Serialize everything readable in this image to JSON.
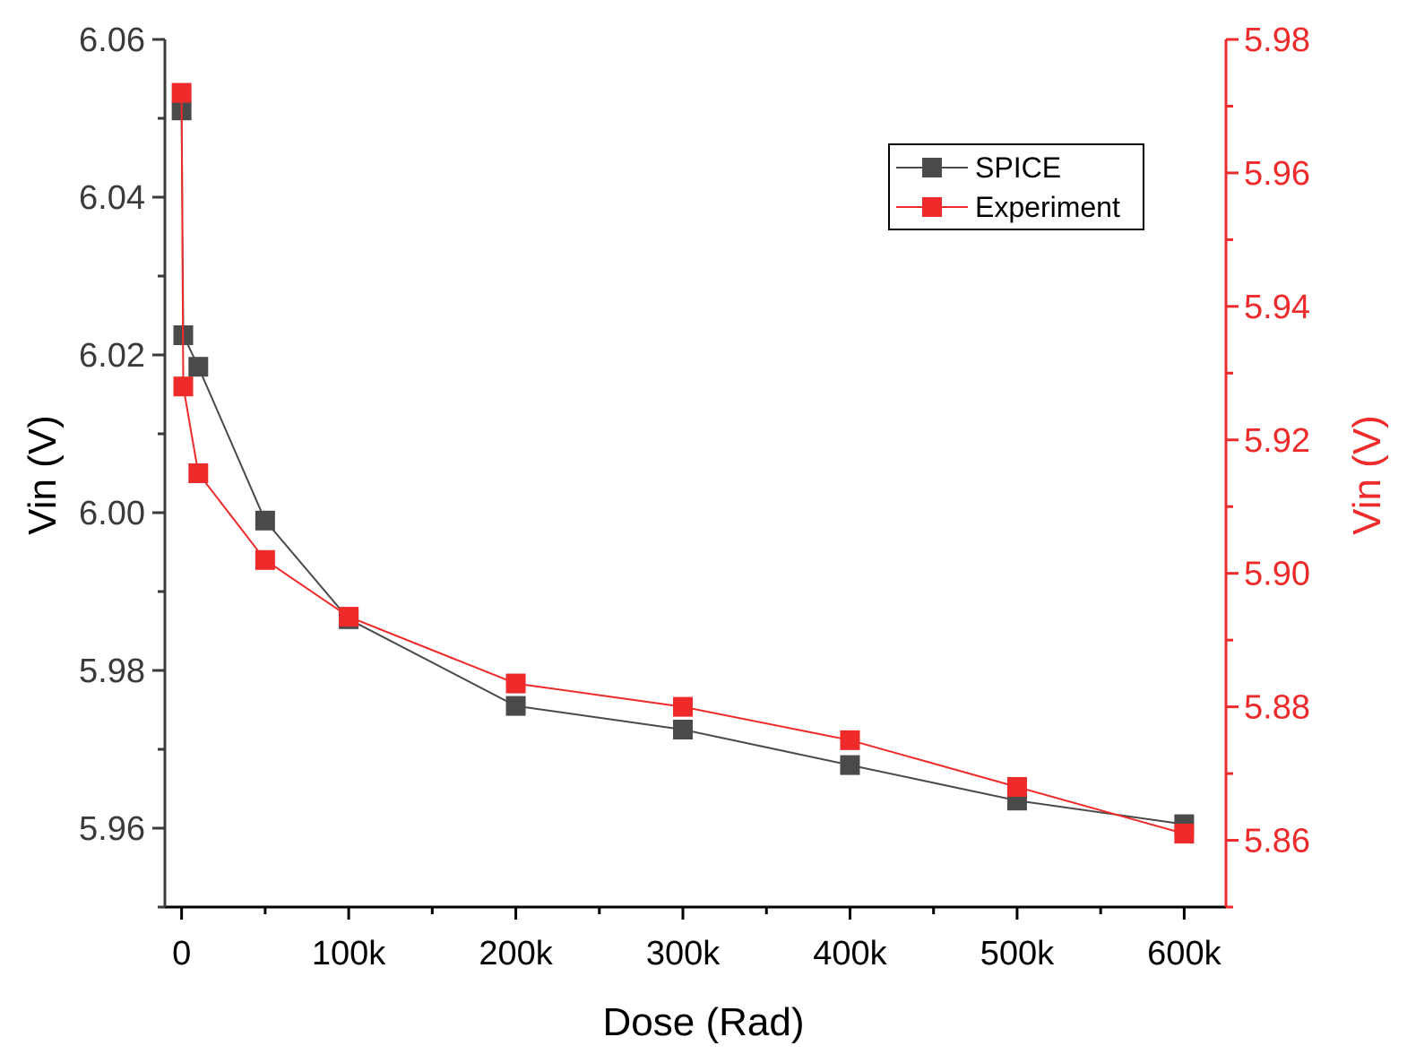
{
  "chart_data": {
    "type": "line",
    "x_ticks": [
      "0",
      "100k",
      "200k",
      "300k",
      "400k",
      "500k",
      "600k"
    ],
    "x_tick_values": [
      0,
      100000,
      200000,
      300000,
      400000,
      500000,
      600000
    ],
    "xlabel": "Dose (Rad)",
    "xlim": [
      -10000,
      625000
    ],
    "y_left": {
      "label": "Vin (V)",
      "lim": [
        5.95,
        6.06
      ],
      "ticks": [
        "5.96",
        "5.98",
        "6.00",
        "6.02",
        "6.04",
        "6.06"
      ],
      "tick_values": [
        5.96,
        5.98,
        6.0,
        6.02,
        6.04,
        6.06
      ],
      "color": "#3a3a3a"
    },
    "y_right": {
      "label": "Vin (V)",
      "lim": [
        5.85,
        5.98
      ],
      "ticks": [
        "5.86",
        "5.88",
        "5.90",
        "5.92",
        "5.94",
        "5.96",
        "5.98"
      ],
      "tick_values": [
        5.86,
        5.88,
        5.9,
        5.92,
        5.94,
        5.96,
        5.98
      ],
      "color": "#ee2a2a"
    },
    "series": [
      {
        "name": "SPICE",
        "axis": "left",
        "color": "#4a4a4a",
        "x": [
          0,
          1000,
          10000,
          50000,
          100000,
          200000,
          300000,
          400000,
          500000,
          600000
        ],
        "y": [
          6.051,
          6.0225,
          6.0185,
          5.999,
          5.9865,
          5.9755,
          5.9725,
          5.968,
          5.9635,
          5.9605
        ]
      },
      {
        "name": "Experiment",
        "axis": "right",
        "color": "#ee2a2a",
        "x": [
          0,
          1000,
          10000,
          50000,
          100000,
          200000,
          300000,
          400000,
          500000,
          600000
        ],
        "y": [
          5.972,
          5.928,
          5.915,
          5.902,
          5.8935,
          5.8835,
          5.88,
          5.875,
          5.868,
          5.861
        ]
      }
    ],
    "legend": {
      "position": "top-right",
      "entries": [
        "SPICE",
        "Experiment"
      ]
    }
  }
}
